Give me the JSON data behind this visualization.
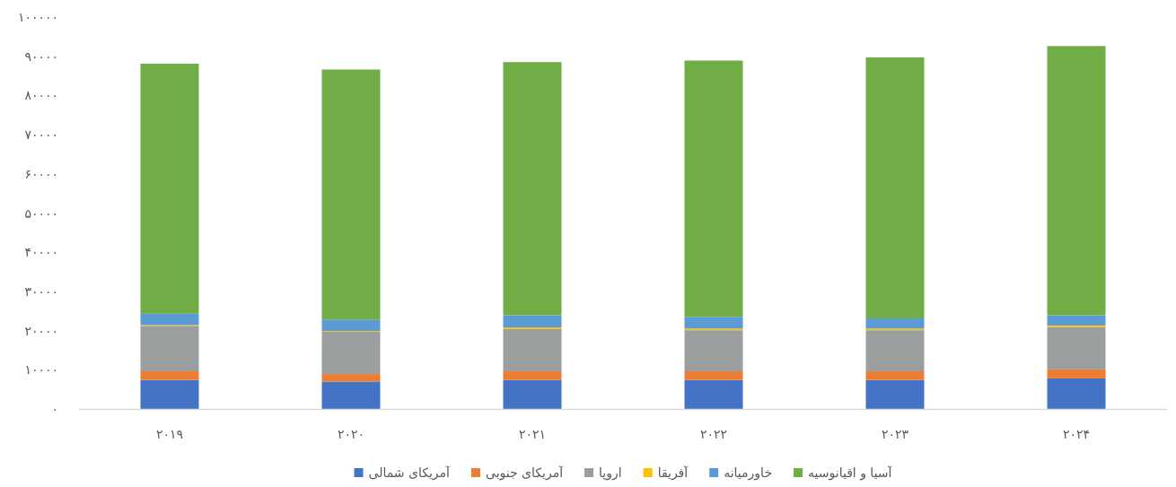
{
  "chart_data": {
    "type": "bar",
    "stacked": true,
    "categories": [
      "۲۰۱۹",
      "۲۰۲۰",
      "۲۰۲۱",
      "۲۰۲۲",
      "۲۰۲۳",
      "۲۰۲۴"
    ],
    "series": [
      {
        "name": "آمریکای شمالی",
        "color": "#4472c4",
        "values": [
          7400,
          7000,
          7400,
          7400,
          7400,
          7800
        ]
      },
      {
        "name": "آمریکای جنوبی",
        "color": "#ed7d31",
        "values": [
          2200,
          1900,
          2200,
          2200,
          2200,
          2300
        ]
      },
      {
        "name": "اروپا",
        "color": "#9b9e9f",
        "values": [
          11600,
          10800,
          10800,
          10500,
          10500,
          10800
        ]
      },
      {
        "name": "آفریقا",
        "color": "#ffc000",
        "values": [
          200,
          200,
          400,
          400,
          400,
          400
        ]
      },
      {
        "name": "خاورمیانه",
        "color": "#5b9bd5",
        "values": [
          2900,
          2900,
          3100,
          3000,
          2600,
          2600
        ]
      },
      {
        "name": "آسیا و اقیانوسیه",
        "color": "#70ad47",
        "values": [
          63800,
          63800,
          64600,
          65400,
          66600,
          68700
        ]
      }
    ],
    "ylim": [
      0,
      100000
    ],
    "yticks": [
      {
        "value": 0,
        "label": "۰"
      },
      {
        "value": 10000,
        "label": "۱۰۰۰۰"
      },
      {
        "value": 20000,
        "label": "۲۰۰۰۰"
      },
      {
        "value": 30000,
        "label": "۳۰۰۰۰"
      },
      {
        "value": 40000,
        "label": "۴۰۰۰۰"
      },
      {
        "value": 50000,
        "label": "۵۰۰۰۰"
      },
      {
        "value": 60000,
        "label": "۶۰۰۰۰"
      },
      {
        "value": 70000,
        "label": "۷۰۰۰۰"
      },
      {
        "value": 80000,
        "label": "۸۰۰۰۰"
      },
      {
        "value": 90000,
        "label": "۹۰۰۰۰"
      },
      {
        "value": 100000,
        "label": "۱۰۰۰۰۰"
      }
    ],
    "legend": "bottom"
  }
}
